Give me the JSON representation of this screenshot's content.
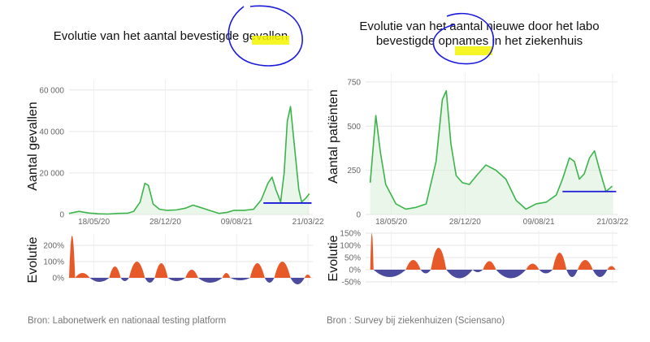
{
  "charts": [
    {
      "title_lines": [
        "Evolutie van het aantal bevestigde gevallen"
      ],
      "source": "Bron: Labonetwerk en nationaal testing platform",
      "ylabel_top": "Aantal gevallen",
      "ylabel_bottom": "Evolutie",
      "top_yticks": [
        "0",
        "20 000",
        "40 000",
        "60 000"
      ],
      "bottom_yticks": [
        "0%",
        "100%",
        "200%"
      ],
      "xticks": [
        "18/05/20",
        "28/12/20",
        "09/08/21",
        "21/03/22"
      ]
    },
    {
      "title_lines": [
        "Evolutie van het aantal nieuwe door het labo",
        "bevestigde opnames in het ziekenhuis"
      ],
      "source": "Bron : Survey bij ziekenhuizen (Sciensano)",
      "ylabel_top": "Aantal patiënten",
      "ylabel_bottom": "Evolutie",
      "top_yticks": [
        "0",
        "250",
        "500",
        "750"
      ],
      "bottom_yticks": [
        "-50%",
        "0%",
        "50%",
        "100%",
        "150%"
      ],
      "xticks": [
        "18/05/20",
        "28/12/20",
        "09/08/21",
        "21/03/22"
      ]
    }
  ],
  "chart_data": [
    {
      "type": "line",
      "title": "Evolutie van het aantal bevestigde gevallen",
      "ylabel": "Aantal gevallen",
      "ylim": [
        0,
        65000
      ],
      "x_ticks": [
        "18/05/20",
        "28/12/20",
        "09/08/21",
        "21/03/22"
      ],
      "y_ticks": [
        0,
        20000,
        40000,
        60000
      ],
      "series": [
        {
          "x": [
            "2020-03-01",
            "2020-04-01",
            "2020-05-01",
            "2020-06-01",
            "2020-07-01",
            "2020-08-01",
            "2020-09-01",
            "2020-09-20",
            "2020-10-10",
            "2020-10-25",
            "2020-11-05",
            "2020-11-20",
            "2020-12-10",
            "2021-01-01",
            "2021-02-01",
            "2021-03-01",
            "2021-03-25",
            "2021-04-15",
            "2021-05-15",
            "2021-06-15",
            "2021-07-10",
            "2021-08-01",
            "2021-09-01",
            "2021-10-01",
            "2021-10-25",
            "2021-11-15",
            "2021-11-28",
            "2021-12-10",
            "2021-12-25",
            "2022-01-05",
            "2022-01-15",
            "2022-01-25",
            "2022-02-05",
            "2022-02-20",
            "2022-03-01",
            "2022-03-15",
            "2022-03-25"
          ],
          "values": [
            500,
            1500,
            700,
            300,
            200,
            500,
            600,
            1500,
            6000,
            15000,
            14000,
            5000,
            2500,
            2000,
            2200,
            3000,
            4500,
            3500,
            2000,
            500,
            1000,
            2000,
            2000,
            2500,
            7000,
            15000,
            18000,
            12000,
            6000,
            20000,
            45000,
            52000,
            35000,
            12000,
            6000,
            8000,
            10000
          ]
        }
      ],
      "baseline_segment": {
        "x": [
          "2021-11-01",
          "2022-04-01"
        ],
        "y": 5500
      }
    },
    {
      "type": "bar",
      "ylabel": "Evolutie",
      "ylim": [
        -50,
        270
      ],
      "y_ticks": [
        0,
        100,
        200
      ],
      "y_tick_unit": "%",
      "x_ticks": [
        "18/05/20",
        "28/12/20",
        "09/08/21",
        "21/03/22"
      ],
      "positive_color": "#e8592a",
      "negative_color": "#4b4a9e",
      "segments": [
        {
          "x": [
            "2020-03-01",
            "2020-03-20"
          ],
          "peak": 260
        },
        {
          "x": [
            "2020-03-20",
            "2020-05-05"
          ],
          "peak": 30
        },
        {
          "x": [
            "2020-05-05",
            "2020-07-05"
          ],
          "peak": -25
        },
        {
          "x": [
            "2020-07-05",
            "2020-08-10"
          ],
          "peak": 70
        },
        {
          "x": [
            "2020-08-10",
            "2020-09-05"
          ],
          "peak": -20
        },
        {
          "x": [
            "2020-09-05",
            "2020-10-25"
          ],
          "peak": 100
        },
        {
          "x": [
            "2020-10-25",
            "2020-11-25"
          ],
          "peak": -30
        },
        {
          "x": [
            "2020-11-25",
            "2021-01-05"
          ],
          "peak": 90
        },
        {
          "x": [
            "2021-01-05",
            "2021-03-01"
          ],
          "peak": -20
        },
        {
          "x": [
            "2021-03-01",
            "2021-04-10"
          ],
          "peak": 50
        },
        {
          "x": [
            "2021-04-10",
            "2021-06-25"
          ],
          "peak": -30
        },
        {
          "x": [
            "2021-06-25",
            "2021-07-20"
          ],
          "peak": 30
        },
        {
          "x": [
            "2021-07-20",
            "2021-09-20"
          ],
          "peak": -15
        },
        {
          "x": [
            "2021-09-20",
            "2021-11-05"
          ],
          "peak": 90
        },
        {
          "x": [
            "2021-11-05",
            "2021-12-05"
          ],
          "peak": -30
        },
        {
          "x": [
            "2021-12-05",
            "2022-01-25"
          ],
          "peak": 100
        },
        {
          "x": [
            "2022-01-25",
            "2022-03-10"
          ],
          "peak": -40
        },
        {
          "x": [
            "2022-03-10",
            "2022-03-30"
          ],
          "peak": 20
        }
      ]
    },
    {
      "type": "line",
      "title": "Evolutie van het aantal nieuwe door het labo bevestigde opnames in het ziekenhuis",
      "ylabel": "Aantal patiënten",
      "ylim": [
        0,
        800
      ],
      "x_ticks": [
        "18/05/20",
        "28/12/20",
        "09/08/21",
        "21/03/22"
      ],
      "y_ticks": [
        0,
        250,
        500,
        750
      ],
      "series": [
        {
          "x": [
            "2020-03-15",
            "2020-04-01",
            "2020-04-15",
            "2020-05-01",
            "2020-06-01",
            "2020-07-01",
            "2020-08-01",
            "2020-09-01",
            "2020-10-01",
            "2020-10-20",
            "2020-11-01",
            "2020-11-15",
            "2020-12-01",
            "2020-12-20",
            "2021-01-10",
            "2021-02-01",
            "2021-03-01",
            "2021-04-01",
            "2021-05-01",
            "2021-06-01",
            "2021-07-01",
            "2021-08-01",
            "2021-09-01",
            "2021-10-01",
            "2021-10-20",
            "2021-11-10",
            "2021-11-25",
            "2021-12-10",
            "2021-12-25",
            "2022-01-10",
            "2022-01-25",
            "2022-02-10",
            "2022-03-01",
            "2022-03-20"
          ],
          "values": [
            180,
            560,
            350,
            170,
            60,
            30,
            40,
            60,
            300,
            650,
            700,
            400,
            220,
            180,
            170,
            220,
            280,
            250,
            200,
            80,
            30,
            60,
            70,
            110,
            200,
            320,
            300,
            200,
            230,
            320,
            360,
            250,
            130,
            160
          ]
        }
      ],
      "baseline_segment": {
        "x": [
          "2021-10-20",
          "2022-04-01"
        ],
        "y": 130
      }
    },
    {
      "type": "bar",
      "ylabel": "Evolutie",
      "ylim": [
        -60,
        160
      ],
      "y_ticks": [
        -50,
        0,
        50,
        100,
        150
      ],
      "y_tick_unit": "%",
      "x_ticks": [
        "18/05/20",
        "28/12/20",
        "09/08/21",
        "21/03/22"
      ],
      "positive_color": "#e8592a",
      "negative_color": "#4b4a9e",
      "segments": [
        {
          "x": [
            "2020-03-15",
            "2020-03-25"
          ],
          "peak": 150
        },
        {
          "x": [
            "2020-03-25",
            "2020-07-01"
          ],
          "peak": -30
        },
        {
          "x": [
            "2020-07-01",
            "2020-08-15"
          ],
          "peak": 40
        },
        {
          "x": [
            "2020-08-15",
            "2020-09-15"
          ],
          "peak": -15
        },
        {
          "x": [
            "2020-09-15",
            "2020-11-01"
          ],
          "peak": 90
        },
        {
          "x": [
            "2020-11-01",
            "2021-01-20"
          ],
          "peak": -35
        },
        {
          "x": [
            "2021-01-20",
            "2021-02-20"
          ],
          "peak": -10
        },
        {
          "x": [
            "2021-02-20",
            "2021-04-01"
          ],
          "peak": 35
        },
        {
          "x": [
            "2021-04-01",
            "2021-07-01"
          ],
          "peak": -35
        },
        {
          "x": [
            "2021-07-01",
            "2021-08-10"
          ],
          "peak": 25
        },
        {
          "x": [
            "2021-08-10",
            "2021-09-20"
          ],
          "peak": -15
        },
        {
          "x": [
            "2021-09-20",
            "2021-11-01"
          ],
          "peak": 70
        },
        {
          "x": [
            "2021-11-01",
            "2021-12-05"
          ],
          "peak": -30
        },
        {
          "x": [
            "2021-12-05",
            "2022-01-20"
          ],
          "peak": 40
        },
        {
          "x": [
            "2022-01-20",
            "2022-03-05"
          ],
          "peak": -30
        },
        {
          "x": [
            "2022-03-05",
            "2022-03-30"
          ],
          "peak": 15
        }
      ]
    }
  ]
}
